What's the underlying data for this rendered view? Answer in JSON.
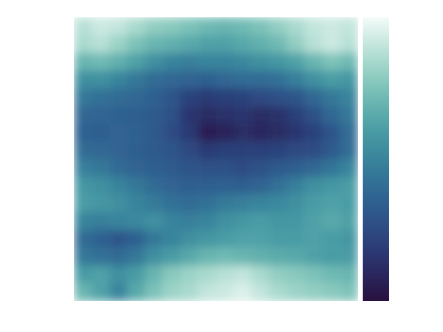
{
  "chart_data": {
    "type": "heatmap",
    "tick_labels": false,
    "values": [
      [
        0.88,
        0.92,
        0.9,
        0.85,
        0.8,
        0.78,
        0.75,
        0.72,
        0.7,
        0.72,
        0.75,
        0.8,
        0.85,
        0.9,
        0.92,
        0.9
      ],
      [
        0.85,
        0.88,
        0.82,
        0.75,
        0.7,
        0.68,
        0.65,
        0.62,
        0.62,
        0.65,
        0.68,
        0.72,
        0.8,
        0.88,
        0.92,
        0.88
      ],
      [
        0.7,
        0.72,
        0.68,
        0.62,
        0.55,
        0.5,
        0.48,
        0.5,
        0.5,
        0.52,
        0.55,
        0.58,
        0.62,
        0.7,
        0.75,
        0.72
      ],
      [
        0.55,
        0.55,
        0.5,
        0.45,
        0.4,
        0.38,
        0.36,
        0.35,
        0.38,
        0.4,
        0.4,
        0.42,
        0.48,
        0.55,
        0.6,
        0.58
      ],
      [
        0.45,
        0.42,
        0.4,
        0.38,
        0.35,
        0.3,
        0.22,
        0.18,
        0.2,
        0.22,
        0.25,
        0.28,
        0.3,
        0.38,
        0.45,
        0.5
      ],
      [
        0.38,
        0.36,
        0.35,
        0.34,
        0.32,
        0.28,
        0.16,
        0.12,
        0.14,
        0.16,
        0.12,
        0.14,
        0.2,
        0.28,
        0.38,
        0.45
      ],
      [
        0.35,
        0.34,
        0.36,
        0.35,
        0.32,
        0.26,
        0.18,
        0.06,
        0.08,
        0.12,
        0.1,
        0.12,
        0.16,
        0.22,
        0.3,
        0.4
      ],
      [
        0.4,
        0.38,
        0.36,
        0.34,
        0.32,
        0.3,
        0.24,
        0.18,
        0.2,
        0.2,
        0.2,
        0.22,
        0.24,
        0.26,
        0.32,
        0.4
      ],
      [
        0.48,
        0.45,
        0.4,
        0.36,
        0.34,
        0.32,
        0.3,
        0.28,
        0.28,
        0.26,
        0.28,
        0.32,
        0.34,
        0.38,
        0.44,
        0.5
      ],
      [
        0.58,
        0.55,
        0.5,
        0.45,
        0.4,
        0.36,
        0.34,
        0.34,
        0.35,
        0.34,
        0.36,
        0.42,
        0.48,
        0.55,
        0.58,
        0.6
      ],
      [
        0.6,
        0.58,
        0.55,
        0.5,
        0.46,
        0.42,
        0.4,
        0.42,
        0.46,
        0.48,
        0.5,
        0.52,
        0.55,
        0.6,
        0.62,
        0.6
      ],
      [
        0.5,
        0.48,
        0.5,
        0.52,
        0.55,
        0.5,
        0.48,
        0.5,
        0.55,
        0.58,
        0.6,
        0.58,
        0.58,
        0.62,
        0.65,
        0.62
      ],
      [
        0.4,
        0.35,
        0.3,
        0.35,
        0.45,
        0.5,
        0.55,
        0.58,
        0.6,
        0.62,
        0.62,
        0.6,
        0.6,
        0.62,
        0.6,
        0.58
      ],
      [
        0.45,
        0.42,
        0.4,
        0.45,
        0.55,
        0.6,
        0.65,
        0.7,
        0.72,
        0.7,
        0.68,
        0.66,
        0.65,
        0.62,
        0.6,
        0.6
      ],
      [
        0.6,
        0.62,
        0.55,
        0.6,
        0.7,
        0.78,
        0.82,
        0.85,
        0.88,
        0.9,
        0.85,
        0.8,
        0.78,
        0.75,
        0.72,
        0.7
      ],
      [
        0.7,
        0.62,
        0.5,
        0.65,
        0.75,
        0.82,
        0.85,
        0.9,
        0.92,
        0.95,
        0.9,
        0.85,
        0.82,
        0.8,
        0.78,
        0.75
      ]
    ],
    "colorbar_range": [
      0,
      1
    ]
  }
}
